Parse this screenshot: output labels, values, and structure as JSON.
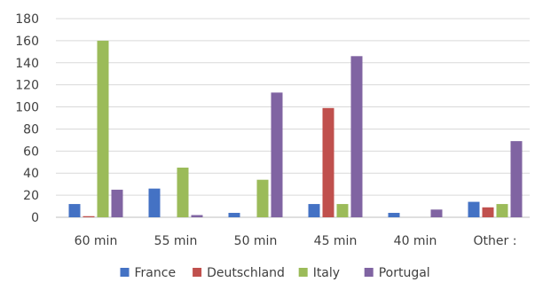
{
  "chart_data": {
    "type": "bar",
    "title": "",
    "xlabel": "",
    "ylabel": "",
    "categories": [
      "60 min",
      "55 min",
      "50 min",
      "45 min",
      "40 min",
      "Other :"
    ],
    "series": [
      {
        "name": "France",
        "color": "#4472C4",
        "values": [
          12,
          26,
          4,
          12,
          4,
          14
        ]
      },
      {
        "name": "Deutschland",
        "color": "#C0504D",
        "values": [
          1,
          0,
          0,
          99,
          0,
          9
        ]
      },
      {
        "name": "Italy",
        "color": "#9BBB59",
        "values": [
          160,
          45,
          34,
          12,
          0,
          12
        ]
      },
      {
        "name": "Portugal",
        "color": "#8064A2",
        "values": [
          25,
          2,
          113,
          146,
          7,
          69
        ]
      }
    ],
    "ylim": [
      0,
      180
    ],
    "yticks": [
      0,
      20,
      40,
      60,
      80,
      100,
      120,
      140,
      160,
      180
    ],
    "grid": true,
    "legend_position": "bottom"
  }
}
